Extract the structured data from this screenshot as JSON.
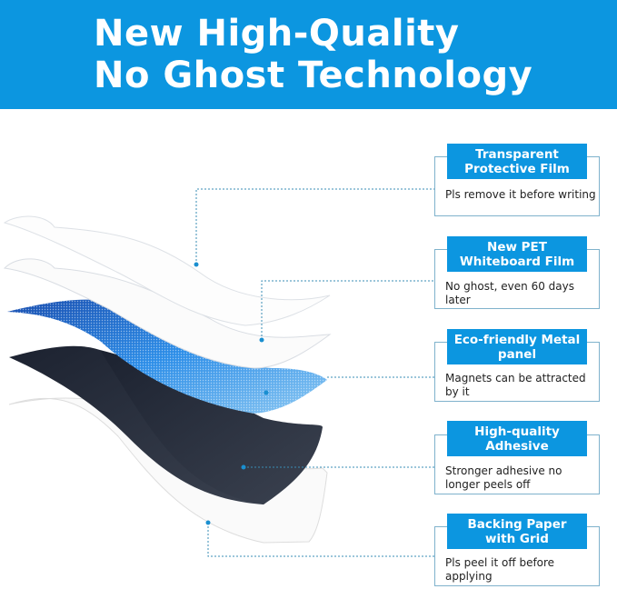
{
  "banner": {
    "line1": "New High-Quality",
    "line2": "No Ghost Technology",
    "color": "#0c96e0"
  },
  "layers": [
    {
      "title": "Transparent Protective Film",
      "desc": "Pls remove it before writing"
    },
    {
      "title": "New PET Whiteboard Film",
      "desc": "No ghost, even 60 days later"
    },
    {
      "title": "Eco-friendly Metal panel",
      "desc": "Magnets can be attracted by it"
    },
    {
      "title": "High-quality Adhesive",
      "desc": "Stronger adhesive no longer peels off"
    },
    {
      "title": "Backing Paper with Grid",
      "desc": "Pls peel it off before applying"
    }
  ]
}
